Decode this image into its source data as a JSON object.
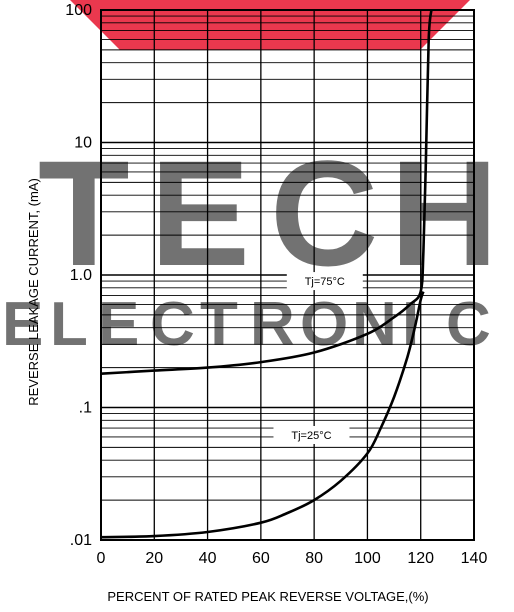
{
  "chart_data": {
    "type": "line",
    "title": "",
    "xlabel": "PERCENT OF RATED PEAK REVERSE VOLTAGE,(%)",
    "ylabel": "REVERSE LEAKAGE CURRENT, (mA)",
    "xlim": [
      0,
      140
    ],
    "ylim": [
      0.01,
      100
    ],
    "yscale": "log",
    "grid": true,
    "x_tick_labels": [
      "0",
      "20",
      "40",
      "60",
      "80",
      "100",
      "120",
      "140"
    ],
    "y_tick_labels": [
      ".01",
      ".1",
      "1.0",
      "10",
      "100"
    ],
    "series": [
      {
        "name": "Tj=75°C",
        "x": [
          0,
          20,
          40,
          60,
          80,
          100,
          110,
          116,
          120,
          121,
          122,
          123,
          124
        ],
        "y": [
          0.18,
          0.19,
          0.2,
          0.22,
          0.26,
          0.36,
          0.48,
          0.6,
          0.75,
          1.5,
          8,
          60,
          100
        ]
      },
      {
        "name": "Tj=25°C",
        "x": [
          0,
          20,
          40,
          60,
          70,
          80,
          90,
          100,
          105,
          110,
          115,
          118,
          120,
          121
        ],
        "y": [
          0.0105,
          0.0107,
          0.0115,
          0.0135,
          0.016,
          0.02,
          0.028,
          0.045,
          0.07,
          0.12,
          0.24,
          0.42,
          0.65,
          0.75
        ]
      }
    ],
    "annotations": [
      "Tj=75°C",
      "Tj=25°C"
    ],
    "colors": {
      "line": "#000000",
      "grid": "#000000",
      "watermark_red": "#e8223b",
      "watermark_gray": "#b4b4b4"
    }
  },
  "watermark": {
    "word1": "TECH",
    "word2": "ELECTRONIC"
  }
}
